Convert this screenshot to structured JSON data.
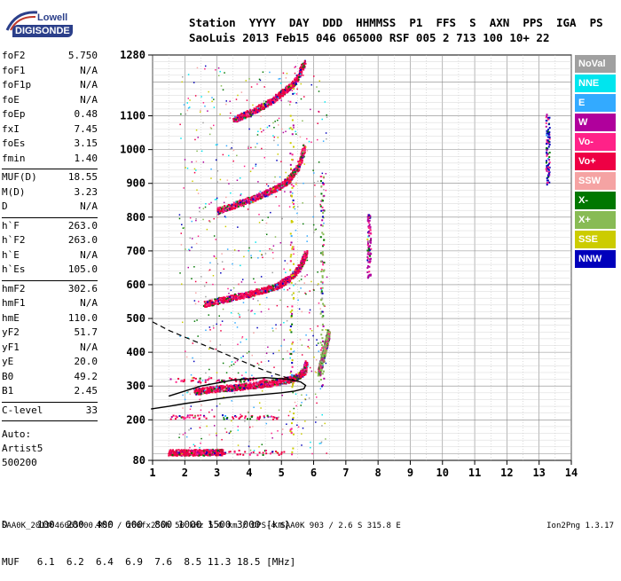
{
  "logo": {
    "brand_top": "Lowell",
    "brand_bottom": "DIGISONDE"
  },
  "header": {
    "labels": [
      "Station",
      "YYYY",
      "DAY",
      "DDD",
      "HHMMSS",
      "P1",
      "FFS",
      "S",
      "AXN",
      "PPS",
      "IGA",
      "PS"
    ],
    "values": [
      "SaoLuis",
      "2013",
      "Feb15",
      "046",
      "065000",
      "RSF",
      "005",
      "2",
      "713",
      "100",
      "10+",
      "22"
    ]
  },
  "params": {
    "group1": [
      {
        "name": "foF2",
        "value": "5.750"
      },
      {
        "name": "foF1",
        "value": "N/A"
      },
      {
        "name": "foF1p",
        "value": "N/A"
      },
      {
        "name": "foE",
        "value": "N/A"
      },
      {
        "name": "foEp",
        "value": "0.48"
      },
      {
        "name": "fxI",
        "value": "7.45"
      },
      {
        "name": "foEs",
        "value": "3.15"
      },
      {
        "name": "fmin",
        "value": "1.40"
      }
    ],
    "group2": [
      {
        "name": "MUF(D)",
        "value": "18.55"
      },
      {
        "name": "M(D)",
        "value": "3.23"
      },
      {
        "name": "D",
        "value": "N/A"
      }
    ],
    "group3": [
      {
        "name": "h`F",
        "value": "263.0"
      },
      {
        "name": "h`F2",
        "value": "263.0"
      },
      {
        "name": "h`E",
        "value": "N/A"
      },
      {
        "name": "h`Es",
        "value": "105.0"
      }
    ],
    "group4": [
      {
        "name": "hmF2",
        "value": "302.6"
      },
      {
        "name": "hmF1",
        "value": "N/A"
      },
      {
        "name": "hmE",
        "value": "110.0"
      },
      {
        "name": "yF2",
        "value": "51.7"
      },
      {
        "name": "yF1",
        "value": "N/A"
      },
      {
        "name": "yE",
        "value": "20.0"
      },
      {
        "name": "B0",
        "value": "49.2"
      },
      {
        "name": "B1",
        "value": "2.45"
      }
    ],
    "group5": [
      {
        "name": "C-level",
        "value": "33"
      }
    ]
  },
  "autoscaling": {
    "line1": "Auto:",
    "line2": "Artist5",
    "line3": "500200"
  },
  "legend": [
    {
      "label": "NoVal",
      "color": "#a0a0a0"
    },
    {
      "label": "NNE",
      "color": "#00e5ee"
    },
    {
      "label": "E",
      "color": "#33aaff"
    },
    {
      "label": "W",
      "color": "#b0009c"
    },
    {
      "label": "Vo-",
      "color": "#ff2288"
    },
    {
      "label": "Vo+",
      "color": "#ee0044"
    },
    {
      "label": "SSW",
      "color": "#f5a3a3"
    },
    {
      "label": "X-",
      "color": "#007700"
    },
    {
      "label": "X+",
      "color": "#88bb55"
    },
    {
      "label": "SSE",
      "color": "#cccc00"
    },
    {
      "label": "NNW",
      "color": "#0000bb"
    }
  ],
  "muf_table": {
    "d_label": "D",
    "muf_label": "MUF",
    "distances": [
      "100",
      "200",
      "400",
      "600",
      "800",
      "1000",
      "1500",
      "3000"
    ],
    "d_unit": "[km]",
    "mufs": [
      "6.1",
      "6.2",
      "6.4",
      "6.9",
      "7.6",
      "8.5",
      "11.3",
      "18.5"
    ],
    "muf_unit": "[MHz]"
  },
  "footer": {
    "left": "SAA0K_2013046065000.RSF / 260fx256h 50 kHz 5.0 km / DPS-4 SAA0K 903 / 2.6 S 315.8 E",
    "right": "Ion2Png 1.3.17"
  },
  "chart_data": {
    "type": "scatter",
    "title": "",
    "xlabel": "",
    "ylabel": "",
    "xlim": [
      1,
      14
    ],
    "ylim": [
      80,
      1280
    ],
    "x_ticks": [
      1,
      2,
      3,
      4,
      5,
      6,
      7,
      8,
      9,
      10,
      11,
      12,
      13,
      14
    ],
    "y_ticks": [
      80,
      200,
      300,
      400,
      500,
      600,
      700,
      800,
      900,
      1000,
      1100,
      1280
    ],
    "grid": true,
    "traces": [
      {
        "name": "F2 O-trace",
        "color": "#ee0044",
        "x": [
          2.3,
          2.8,
          3.3,
          3.8,
          4.3,
          4.8,
          5.2,
          5.5,
          5.7,
          5.75
        ],
        "y": [
          285,
          292,
          296,
          300,
          306,
          312,
          320,
          330,
          345,
          370
        ]
      },
      {
        "name": "F2 2nd hop",
        "color": "#ee0044",
        "x": [
          2.6,
          3.2,
          3.8,
          4.4,
          4.9,
          5.3,
          5.6,
          5.75
        ],
        "y": [
          545,
          558,
          570,
          585,
          600,
          625,
          660,
          695
        ]
      },
      {
        "name": "F2 3rd hop",
        "color": "#ee0044",
        "x": [
          3.0,
          3.6,
          4.2,
          4.8,
          5.2,
          5.5,
          5.7
        ],
        "y": [
          820,
          840,
          860,
          885,
          910,
          950,
          1010
        ]
      },
      {
        "name": "F2 4th hop",
        "color": "#ee0044",
        "x": [
          3.5,
          4.0,
          4.6,
          5.0,
          5.4,
          5.7
        ],
        "y": [
          1090,
          1110,
          1140,
          1170,
          1200,
          1260
        ]
      },
      {
        "name": "X-trace",
        "color": "#88bb55",
        "x": [
          6.15,
          6.2,
          6.25,
          6.3,
          6.35,
          6.4,
          6.45
        ],
        "y": [
          340,
          360,
          380,
          400,
          420,
          440,
          460
        ]
      },
      {
        "name": "Es",
        "color": "#ee0044",
        "x": [
          1.5,
          2.0,
          2.5,
          3.0,
          3.15
        ],
        "y": [
          105,
          105,
          105,
          106,
          106
        ]
      }
    ],
    "profile_line": {
      "x": [
        0.95,
        1.5,
        2.0,
        2.5,
        3.0,
        3.5,
        4.0,
        4.5,
        5.0,
        5.4,
        5.7,
        5.75,
        5.6,
        5.2,
        4.5,
        3.5,
        2.5,
        1.5
      ],
      "y": [
        232,
        240,
        248,
        255,
        262,
        268,
        272,
        276,
        280,
        285,
        292,
        302,
        312,
        320,
        325,
        318,
        300,
        270
      ]
    },
    "model_dashed": {
      "x": [
        1.0,
        1.5,
        2.0,
        2.5,
        3.0,
        3.5,
        4.0,
        4.5,
        5.0,
        5.4
      ],
      "y": [
        490,
        465,
        445,
        425,
        405,
        385,
        365,
        345,
        330,
        318
      ]
    }
  }
}
